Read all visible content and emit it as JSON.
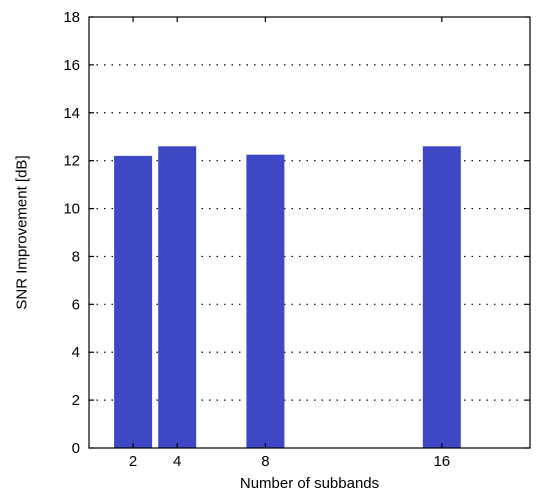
{
  "chart_data": {
    "type": "bar",
    "title": "",
    "xlabel": "Number of subbands",
    "ylabel": "SNR Improvement [dB]",
    "x": [
      2,
      4,
      8,
      16
    ],
    "xticks": [
      "2",
      "4",
      "8",
      "16"
    ],
    "values": [
      12.2,
      12.6,
      12.25,
      12.6
    ],
    "ylim": [
      0,
      18
    ],
    "yticks": [
      "0",
      "2",
      "4",
      "6",
      "8",
      "10",
      "12",
      "14",
      "16",
      "18"
    ],
    "xlim": [
      0,
      20
    ],
    "grid": "y-dotted",
    "bar_color": "#3f48c4"
  }
}
